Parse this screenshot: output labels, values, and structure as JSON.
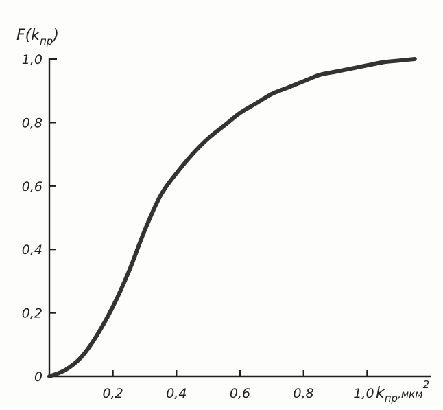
{
  "chart_data": {
    "type": "line",
    "ylabel": {
      "main": "F(k",
      "sub": "пр",
      "close": ")"
    },
    "xlabel": {
      "main": "k",
      "sub": "пр",
      "unit": ",мкм",
      "sup": "2"
    },
    "xlim": [
      0,
      1.2
    ],
    "ylim": [
      0,
      1.0
    ],
    "x_tick_labels": [
      "0,2",
      "0,4",
      "0,6",
      "0,8",
      "1,0"
    ],
    "x_tick_values": [
      0.2,
      0.4,
      0.6,
      0.8,
      1.0
    ],
    "y_tick_labels": [
      "0",
      "0,2",
      "0,4",
      "0,6",
      "0,8",
      "1,0"
    ],
    "y_tick_values": [
      0,
      0.2,
      0.4,
      0.6,
      0.8,
      1.0
    ],
    "grid": false,
    "series": [
      {
        "color": "#333333",
        "x": [
          0,
          0.05,
          0.1,
          0.15,
          0.2,
          0.25,
          0.3,
          0.35,
          0.4,
          0.45,
          0.5,
          0.55,
          0.6,
          0.65,
          0.7,
          0.75,
          0.8,
          0.85,
          0.9,
          0.95,
          1.0,
          1.05,
          1.1,
          1.15
        ],
        "y": [
          0,
          0.02,
          0.06,
          0.13,
          0.22,
          0.33,
          0.46,
          0.57,
          0.64,
          0.7,
          0.75,
          0.79,
          0.83,
          0.86,
          0.89,
          0.91,
          0.93,
          0.95,
          0.96,
          0.97,
          0.98,
          0.99,
          0.995,
          1.0
        ]
      }
    ]
  }
}
